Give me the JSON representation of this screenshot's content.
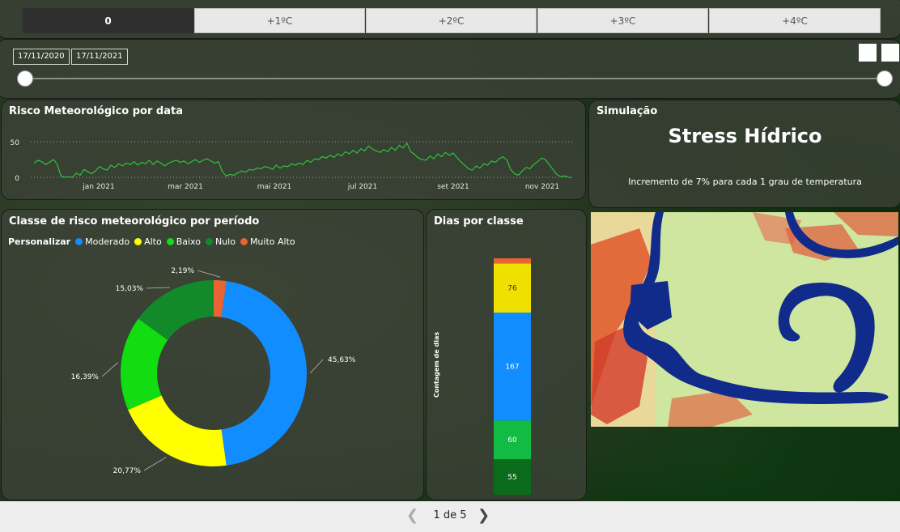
{
  "temp_tabs": [
    "0",
    "+1ºC",
    "+2ºC",
    "+3ºC",
    "+4ºC"
  ],
  "date_range": {
    "start": "17/11/2020",
    "end": "17/11/2021"
  },
  "line_chart": {
    "title": "Risco Meteorológico por data",
    "chart_data": {
      "type": "line",
      "y_ticks": [
        "50",
        "0"
      ],
      "ylim": [
        0,
        50
      ],
      "x_tick_labels": [
        "jan 2021",
        "mar 2021",
        "mai 2021",
        "jul 2021",
        "set 2021",
        "nov 2021"
      ],
      "series_color": "#2ecc40",
      "grid": true,
      "values": [
        20,
        24,
        22,
        18,
        21,
        25,
        19,
        2,
        0,
        1,
        0,
        6,
        3,
        11,
        8,
        5,
        9,
        15,
        12,
        10,
        17,
        14,
        19,
        16,
        20,
        18,
        22,
        17,
        21,
        19,
        24,
        18,
        23,
        20,
        16,
        20,
        22,
        24,
        21,
        23,
        19,
        22,
        25,
        21,
        24,
        26,
        23,
        20,
        22,
        8,
        2,
        4,
        3,
        6,
        9,
        7,
        11,
        10,
        13,
        12,
        15,
        14,
        11,
        17,
        13,
        16,
        15,
        19,
        17,
        20,
        18,
        24,
        21,
        26,
        25,
        29,
        27,
        31,
        28,
        33,
        30,
        36,
        33,
        38,
        34,
        40,
        37,
        44,
        40,
        37,
        35,
        39,
        36,
        42,
        38,
        45,
        41,
        48,
        36,
        32,
        27,
        25,
        24,
        30,
        26,
        33,
        29,
        35,
        31,
        34,
        28,
        22,
        17,
        12,
        10,
        16,
        13,
        19,
        17,
        23,
        21,
        26,
        29,
        24,
        11,
        5,
        3,
        9,
        14,
        12,
        18,
        22,
        27,
        25,
        18,
        11,
        4,
        1,
        2,
        0,
        0
      ]
    }
  },
  "simulation": {
    "panel_title": "Simulação",
    "headline": "Stress Hídrico",
    "subtitle": "Incremento de 7% para cada 1 grau de temperatura"
  },
  "donut_chart": {
    "title": "Classe de risco meteorológico por período",
    "legend_title": "Personalizar",
    "chart_data": {
      "type": "pie",
      "categories": [
        "Moderado",
        "Alto",
        "Baixo",
        "Nulo",
        "Muito Alto"
      ],
      "values": [
        45.63,
        20.77,
        16.39,
        15.03,
        2.19
      ],
      "labels": [
        "45,63%",
        "20,77%",
        "16,39%",
        "15,03%",
        "2,19%"
      ],
      "colors": [
        "#118dff",
        "#ffff00",
        "#11dd11",
        "#128a2a",
        "#e86434"
      ]
    }
  },
  "days_chart": {
    "title": "Dias por classe",
    "ylabel": "Contagem de dias",
    "chart_data": {
      "type": "bar",
      "stacked": true,
      "segments": [
        {
          "name": "Nulo",
          "value": 55,
          "label": "55",
          "color": "#0b6b1c"
        },
        {
          "name": "Baixo",
          "value": 60,
          "label": "60",
          "color": "#11bb44"
        },
        {
          "name": "Moderado",
          "value": 167,
          "label": "167",
          "color": "#118dff"
        },
        {
          "name": "Alto",
          "value": 76,
          "label": "76",
          "color": "#f0e000"
        },
        {
          "name": "Muito Alto",
          "value": 8,
          "label": "",
          "color": "#e86434"
        }
      ]
    }
  },
  "footer": {
    "page_text": "1 de 5",
    "prev_icon": "chevron-left",
    "next_icon": "chevron-right"
  }
}
